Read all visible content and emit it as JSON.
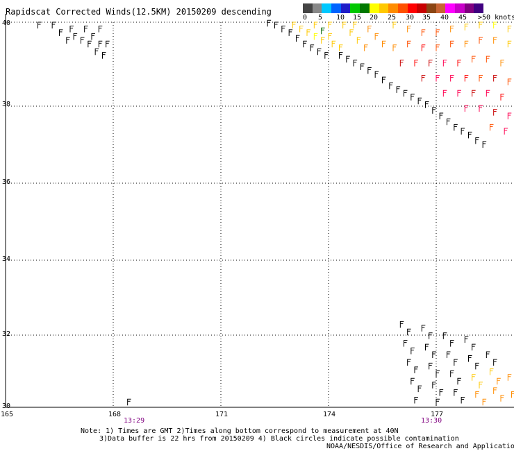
{
  "title": "Rapidscat Corrected Winds(12.5KM) 20150209 descending",
  "legend": {
    "colors": [
      "#444444",
      "#888888",
      "#00c8ff",
      "#0064ff",
      "#1e1ec8",
      "#00c800",
      "#007800",
      "#ffff00",
      "#ffc800",
      "#ff8c00",
      "#ff5000",
      "#ff0000",
      "#c80000",
      "#8b4513",
      "#c86432",
      "#ff00ff",
      "#c800c8",
      "#800080",
      "#400080"
    ],
    "labels": [
      "0",
      "5",
      "10",
      "15",
      "20",
      "25",
      "30",
      "35",
      "40",
      "45",
      ">50 knots"
    ]
  },
  "axes": {
    "y_ticks": [
      "40",
      "38",
      "36",
      "34",
      "32",
      "30"
    ],
    "x_ticks": [
      "165",
      "168",
      "171",
      "174",
      "177"
    ]
  },
  "times": [
    "13:29",
    "13:30"
  ],
  "notes": {
    "line1": "Note: 1) Times are GMT 2)Times along bottom correspond to measurement at 40N",
    "line2": "3)Data buffer is 22 hrs from 20150209 4) Black circles indicate possible contamination",
    "line3": "NOAA/NESDIS/Office of Research and Applications"
  },
  "chart_data": {
    "type": "scatter",
    "xlim": [
      165,
      179.5
    ],
    "ylim": [
      30,
      40.2
    ],
    "grid": true,
    "series": [
      {
        "values": [
          [
            165.9,
            40.0,
            "#000"
          ],
          [
            166.3,
            40.0,
            "#000"
          ],
          [
            166.5,
            39.8,
            "#000"
          ],
          [
            166.7,
            39.6,
            "#000"
          ],
          [
            166.9,
            39.7,
            "#000"
          ],
          [
            167.1,
            39.6,
            "#000"
          ],
          [
            167.3,
            39.5,
            "#000"
          ],
          [
            167.4,
            39.7,
            "#000"
          ],
          [
            167.5,
            39.3,
            "#000"
          ],
          [
            167.6,
            39.5,
            "#000"
          ],
          [
            167.7,
            39.2,
            "#000"
          ],
          [
            167.8,
            39.5,
            "#000"
          ],
          [
            166.8,
            39.9,
            "#000"
          ],
          [
            167.2,
            39.9,
            "#000"
          ],
          [
            167.6,
            39.9,
            "#000"
          ],
          [
            168.4,
            30.05,
            "#000"
          ],
          [
            172.3,
            40.05,
            "#000"
          ],
          [
            172.5,
            40.0,
            "#000"
          ],
          [
            172.7,
            39.9,
            "#000"
          ],
          [
            172.9,
            39.8,
            "#000"
          ],
          [
            173.1,
            39.65,
            "#000"
          ],
          [
            173.3,
            39.5,
            "#000"
          ],
          [
            173.5,
            39.4,
            "#000"
          ],
          [
            173.7,
            39.3,
            "#000"
          ],
          [
            173.9,
            39.2,
            "#000"
          ],
          [
            173.0,
            40.0,
            "#ffc800"
          ],
          [
            173.2,
            39.9,
            "#ffc800"
          ],
          [
            173.4,
            39.8,
            "#ffc800"
          ],
          [
            173.6,
            39.7,
            "#ffff00"
          ],
          [
            173.8,
            39.6,
            "#ffc800"
          ],
          [
            173.6,
            40.0,
            "#ffc800"
          ],
          [
            173.8,
            39.85,
            "#006400"
          ],
          [
            174.0,
            39.7,
            "#ffc800"
          ],
          [
            174.1,
            39.5,
            "#ffc800"
          ],
          [
            174.3,
            39.4,
            "#ffc800"
          ],
          [
            174.0,
            40.0,
            "#ffc800"
          ],
          [
            174.4,
            40.0,
            "#ffc800"
          ],
          [
            174.6,
            39.8,
            "#ffc800"
          ],
          [
            174.8,
            39.6,
            "#ffc800"
          ],
          [
            175.0,
            39.4,
            "#ff8c00"
          ],
          [
            174.7,
            40.0,
            "#ffc800"
          ],
          [
            175.1,
            39.9,
            "#ff8c00"
          ],
          [
            175.3,
            39.7,
            "#ff8c00"
          ],
          [
            175.5,
            39.5,
            "#ff8c00"
          ],
          [
            174.3,
            39.2,
            "#000"
          ],
          [
            174.5,
            39.1,
            "#000"
          ],
          [
            174.7,
            39.0,
            "#000"
          ],
          [
            174.9,
            38.9,
            "#000"
          ],
          [
            175.1,
            38.8,
            "#000"
          ],
          [
            175.3,
            38.7,
            "#000"
          ],
          [
            175.5,
            38.55,
            "#000"
          ],
          [
            175.7,
            38.4,
            "#000"
          ],
          [
            175.9,
            38.3,
            "#000"
          ],
          [
            176.1,
            38.2,
            "#000"
          ],
          [
            176.3,
            38.1,
            "#000"
          ],
          [
            176.5,
            38.0,
            "#000"
          ],
          [
            176.7,
            37.9,
            "#000"
          ],
          [
            176.9,
            37.75,
            "#000"
          ],
          [
            177.1,
            37.6,
            "#000"
          ],
          [
            177.3,
            37.45,
            "#000"
          ],
          [
            177.5,
            37.3,
            "#000"
          ],
          [
            177.7,
            37.2,
            "#000"
          ],
          [
            177.9,
            37.1,
            "#000"
          ],
          [
            178.1,
            36.95,
            "#000"
          ],
          [
            178.3,
            36.85,
            "#000"
          ],
          [
            175.8,
            40.0,
            "#ffc800"
          ],
          [
            176.2,
            39.9,
            "#ff8c00"
          ],
          [
            176.6,
            39.8,
            "#ff5000"
          ],
          [
            177.0,
            39.8,
            "#ff5000"
          ],
          [
            177.4,
            39.9,
            "#ff8c00"
          ],
          [
            177.8,
            39.95,
            "#ffc800"
          ],
          [
            178.2,
            40.0,
            "#ffc800"
          ],
          [
            178.6,
            40.0,
            "#ffff00"
          ],
          [
            179.0,
            39.9,
            "#ffc800"
          ],
          [
            179.3,
            39.7,
            "#ffc800"
          ],
          [
            175.8,
            39.4,
            "#ff8c00"
          ],
          [
            176.2,
            39.5,
            "#ff5000"
          ],
          [
            176.6,
            39.4,
            "#ff0000"
          ],
          [
            177.0,
            39.4,
            "#ff5000"
          ],
          [
            177.4,
            39.5,
            "#ff5000"
          ],
          [
            177.8,
            39.5,
            "#ff8c00"
          ],
          [
            178.2,
            39.6,
            "#ff5000"
          ],
          [
            178.6,
            39.6,
            "#ff8c00"
          ],
          [
            179.0,
            39.5,
            "#ffc800"
          ],
          [
            179.3,
            39.3,
            "#ff8c00"
          ],
          [
            176.0,
            39.0,
            "#c80000"
          ],
          [
            176.4,
            39.0,
            "#ff0000"
          ],
          [
            176.8,
            39.0,
            "#c80000"
          ],
          [
            177.2,
            39.0,
            "#ff0050"
          ],
          [
            177.6,
            39.0,
            "#ff0000"
          ],
          [
            178.0,
            39.1,
            "#ff5000"
          ],
          [
            178.4,
            39.1,
            "#ff5000"
          ],
          [
            178.8,
            39.0,
            "#ff8c00"
          ],
          [
            179.2,
            38.9,
            "#ff5000"
          ],
          [
            176.6,
            38.6,
            "#c80000"
          ],
          [
            177.0,
            38.6,
            "#ff0050"
          ],
          [
            177.4,
            38.6,
            "#ff0050"
          ],
          [
            177.8,
            38.6,
            "#ff0000"
          ],
          [
            178.2,
            38.6,
            "#ff5000"
          ],
          [
            178.6,
            38.6,
            "#c80000"
          ],
          [
            179.0,
            38.5,
            "#ff5000"
          ],
          [
            179.3,
            38.4,
            "#ff0000"
          ],
          [
            177.2,
            38.2,
            "#ff0050"
          ],
          [
            177.6,
            38.2,
            "#ff0050"
          ],
          [
            178.0,
            38.2,
            "#c80000"
          ],
          [
            178.4,
            38.2,
            "#ff0050"
          ],
          [
            178.8,
            38.1,
            "#ff0000"
          ],
          [
            179.2,
            38.0,
            "#ff0050"
          ],
          [
            177.8,
            37.8,
            "#ff0050"
          ],
          [
            178.2,
            37.8,
            "#ff0050"
          ],
          [
            178.6,
            37.7,
            "#c80000"
          ],
          [
            179.0,
            37.6,
            "#ff0050"
          ],
          [
            179.3,
            37.4,
            "#ff0050"
          ],
          [
            178.5,
            37.3,
            "#ff5000"
          ],
          [
            178.9,
            37.2,
            "#ff0050"
          ],
          [
            179.2,
            37.0,
            "#ff0050"
          ],
          [
            179.3,
            36.75,
            "#ff0050"
          ],
          [
            176.0,
            32.1,
            "#000"
          ],
          [
            176.2,
            31.9,
            "#000"
          ],
          [
            176.1,
            31.6,
            "#000"
          ],
          [
            176.3,
            31.4,
            "#000"
          ],
          [
            176.2,
            31.1,
            "#000"
          ],
          [
            176.4,
            30.9,
            "#000"
          ],
          [
            176.3,
            30.6,
            "#000"
          ],
          [
            176.5,
            30.4,
            "#000"
          ],
          [
            176.4,
            30.1,
            "#000"
          ],
          [
            176.6,
            32.0,
            "#000"
          ],
          [
            176.8,
            31.8,
            "#000"
          ],
          [
            176.7,
            31.5,
            "#000"
          ],
          [
            176.9,
            31.3,
            "#000"
          ],
          [
            176.8,
            31.0,
            "#000"
          ],
          [
            177.0,
            30.8,
            "#000"
          ],
          [
            176.9,
            30.5,
            "#000"
          ],
          [
            177.1,
            30.3,
            "#000"
          ],
          [
            177.0,
            30.05,
            "#000"
          ],
          [
            177.2,
            31.8,
            "#000"
          ],
          [
            177.4,
            31.6,
            "#000"
          ],
          [
            177.3,
            31.3,
            "#000"
          ],
          [
            177.5,
            31.1,
            "#000"
          ],
          [
            177.4,
            30.8,
            "#000"
          ],
          [
            177.6,
            30.6,
            "#000"
          ],
          [
            177.5,
            30.3,
            "#000"
          ],
          [
            177.7,
            30.1,
            "#000"
          ],
          [
            177.8,
            31.7,
            "#000"
          ],
          [
            178.0,
            31.5,
            "#000"
          ],
          [
            177.9,
            31.2,
            "#000"
          ],
          [
            178.1,
            31.0,
            "#000"
          ],
          [
            178.0,
            30.7,
            "#ffc800"
          ],
          [
            178.2,
            30.5,
            "#ffc800"
          ],
          [
            178.1,
            30.25,
            "#ff8c00"
          ],
          [
            178.3,
            30.05,
            "#ff8c00"
          ],
          [
            178.4,
            31.3,
            "#000"
          ],
          [
            178.6,
            31.1,
            "#000"
          ],
          [
            178.5,
            30.85,
            "#ffc800"
          ],
          [
            178.7,
            30.6,
            "#ff8c00"
          ],
          [
            178.6,
            30.35,
            "#ff8c00"
          ],
          [
            178.8,
            30.15,
            "#ff8c00"
          ],
          [
            179.0,
            30.7,
            "#ff8c00"
          ],
          [
            179.2,
            30.5,
            "#ff8c00"
          ],
          [
            179.1,
            30.25,
            "#ff8c00"
          ],
          [
            179.3,
            30.05,
            "#ff8c00"
          ]
        ]
      }
    ]
  }
}
